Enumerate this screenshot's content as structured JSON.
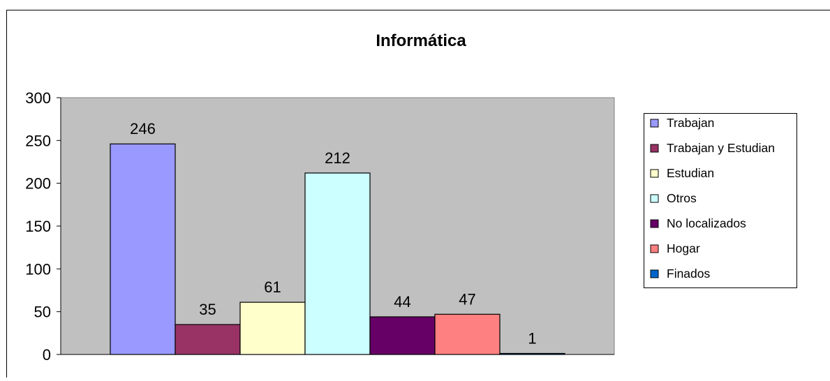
{
  "chart_data": {
    "type": "bar",
    "title": "Informática",
    "xlabel": "",
    "ylabel": "",
    "ylim": [
      0,
      300
    ],
    "yticks": [
      0,
      50,
      100,
      150,
      200,
      250,
      300
    ],
    "grid": false,
    "legend_position": "right",
    "series": [
      {
        "name": "Trabajan",
        "value": 246,
        "color": "#9999FF"
      },
      {
        "name": "Trabajan y Estudian",
        "value": 35,
        "color": "#993366"
      },
      {
        "name": "Estudian",
        "value": 61,
        "color": "#FFFFCC"
      },
      {
        "name": "Otros",
        "value": 212,
        "color": "#CCFFFF"
      },
      {
        "name": "No localizados",
        "value": 44,
        "color": "#660066"
      },
      {
        "name": "Hogar",
        "value": 47,
        "color": "#FF8080"
      },
      {
        "name": "Finados",
        "value": 1,
        "color": "#0066CC"
      }
    ],
    "plot_background": "#C0C0C0"
  }
}
